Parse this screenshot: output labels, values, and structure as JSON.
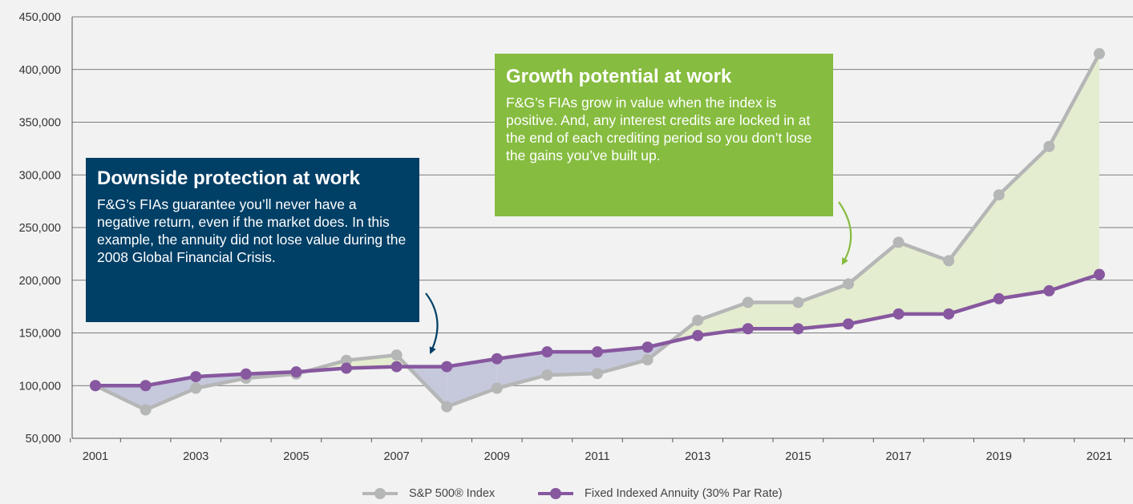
{
  "colors": {
    "sp": "#b5b6b6",
    "fia": "#87579f",
    "gain_fill": "#e4edcf",
    "protect_fill": "#c6c8dc",
    "green_box": "#86bc3f",
    "blue_box": "#003f66",
    "blue_arrow": "#003f66",
    "green_arrow": "#86bc3f",
    "axis": "#555555",
    "grid": "#555555"
  },
  "chart_data": {
    "type": "line",
    "x": [
      2001,
      2002,
      2003,
      2004,
      2005,
      2006,
      2007,
      2008,
      2009,
      2010,
      2011,
      2012,
      2013,
      2014,
      2015,
      2016,
      2017,
      2018,
      2019,
      2020,
      2021
    ],
    "series": [
      {
        "name": "S&P 500® Index",
        "values": [
          100000,
          77000,
          97500,
          107000,
          111000,
          124000,
          129000,
          80000,
          97500,
          110000,
          111500,
          124500,
          162000,
          179000,
          179000,
          196500,
          236000,
          218500,
          281000,
          327000,
          415000
        ]
      },
      {
        "name": "Fixed Indexed Annuity (30% Par Rate)",
        "values": [
          100000,
          100000,
          108500,
          111000,
          113000,
          116500,
          118000,
          118000,
          125500,
          132000,
          132000,
          136500,
          147500,
          154000,
          154000,
          158500,
          168000,
          168000,
          182500,
          190000,
          205500
        ]
      }
    ],
    "y_ticks": [
      "450,000",
      "400,000",
      "350,000",
      "300,000",
      "250,000",
      "200,000",
      "150,000",
      "100,000",
      "50,000"
    ],
    "x_tick_labels": [
      "2001",
      "2003",
      "2005",
      "2007",
      "2009",
      "2011",
      "2013",
      "2015",
      "2017",
      "2019",
      "2021"
    ],
    "ylim": [
      50000,
      450000
    ],
    "grid": "horizontal",
    "legend_position": "bottom-center",
    "title": "",
    "xlabel": "",
    "ylabel": ""
  },
  "callouts": {
    "growth": {
      "title": "Growth potential at work",
      "body": "F&G’s FIAs grow in value when the index is positive. And, any interest credits are locked in at the end of each crediting period so you don’t lose the gains you’ve built up."
    },
    "downside": {
      "title": "Downside protection at work",
      "body": "F&G’s FIAs guarantee you’ll never have a negative return, even if the market does. In this example, the annuity did not lose value during the 2008 Global Financial Crisis."
    }
  },
  "legend": {
    "sp_label": "S&P 500® Index",
    "fia_label": "Fixed Indexed Annuity (30% Par Rate)"
  }
}
